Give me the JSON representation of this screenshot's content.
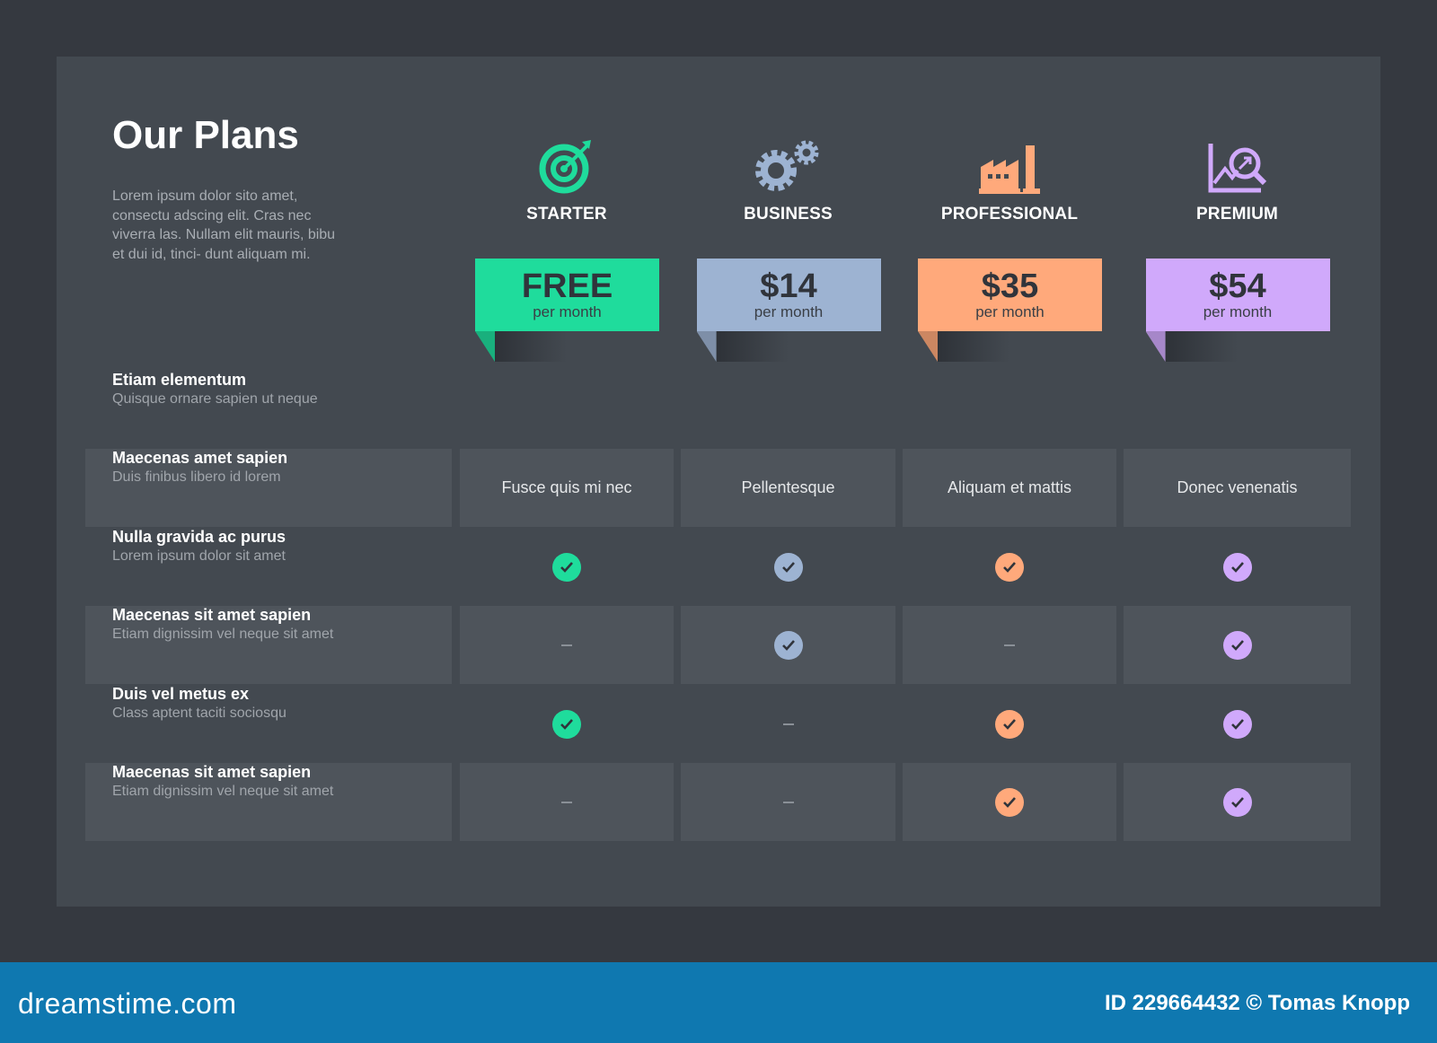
{
  "header": {
    "title": "Our Plans",
    "description": "Lorem ipsum dolor sito amet, consectu adscing elit. Cras nec viverra las. Nullam elit mauris, bibu et dui id, tinci- dunt aliquam mi."
  },
  "plans": [
    {
      "name": "STARTER",
      "price": "FREE",
      "period": "per month",
      "color": "#1fdc9c",
      "icon": "target-icon"
    },
    {
      "name": "BUSINESS",
      "price": "$14",
      "period": "per month",
      "color": "#9db3d2",
      "icon": "gears-icon"
    },
    {
      "name": "PROFESSIONAL",
      "price": "$35",
      "period": "per month",
      "color": "#ffa97b",
      "icon": "factory-icon"
    },
    {
      "name": "PREMIUM",
      "price": "$54",
      "period": "per month",
      "color": "#d0a9fb",
      "icon": "chart-search-icon"
    }
  ],
  "features": [
    {
      "title": "Etiam elementum",
      "subtitle": "Quisque ornare sapien ut neque",
      "values": [
        null,
        null,
        null,
        null
      ],
      "header": true
    },
    {
      "title": "Maecenas amet sapien",
      "subtitle": "Duis finibus libero id lorem",
      "values": [
        "Fusce quis mi nec",
        "Pellentesque",
        "Aliquam et mattis",
        "Donec venenatis"
      ]
    },
    {
      "title": "Nulla gravida ac purus",
      "subtitle": "Lorem ipsum dolor sit amet",
      "values": [
        "check",
        "check",
        "check",
        "check"
      ]
    },
    {
      "title": "Maecenas sit amet sapien",
      "subtitle": "Etiam dignissim vel neque sit amet",
      "values": [
        "dash",
        "check",
        "dash",
        "check"
      ]
    },
    {
      "title": "Duis vel metus ex",
      "subtitle": "Class aptent taciti sociosqu",
      "values": [
        "check",
        "dash",
        "check",
        "check"
      ]
    },
    {
      "title": "Maecenas sit amet sapien",
      "subtitle": "Etiam dignissim vel neque sit amet",
      "values": [
        "dash",
        "dash",
        "check",
        "check"
      ]
    }
  ],
  "footer": {
    "logo": "dreamstime.com",
    "credit": "ID 229664432 © Tomas Knopp"
  }
}
